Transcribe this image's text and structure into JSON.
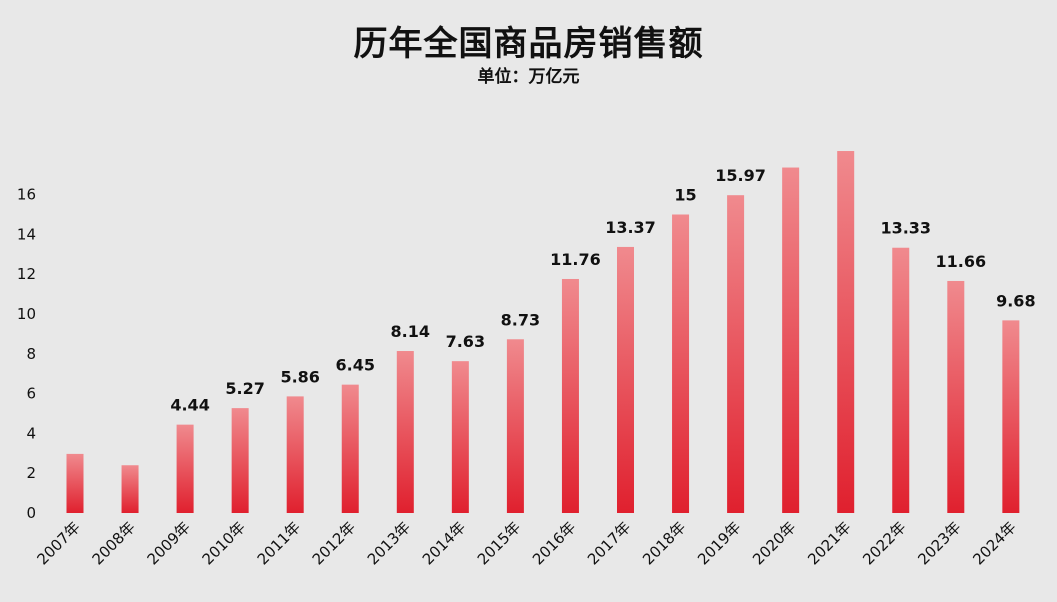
{
  "chart_data": {
    "type": "bar",
    "title": "历年全国商品房销售额",
    "subtitle": "单位：万亿元",
    "xlabel": "",
    "ylabel": "",
    "ylim": [
      0,
      18
    ],
    "yticks": [
      0,
      2,
      4,
      6,
      8,
      10,
      12,
      14,
      16
    ],
    "categories": [
      "2007年",
      "2008年",
      "2009年",
      "2010年",
      "2011年",
      "2012年",
      "2013年",
      "2014年",
      "2015年",
      "2016年",
      "2017年",
      "2018年",
      "2019年",
      "2020年",
      "2021年",
      "2022年",
      "2023年",
      "2024年"
    ],
    "values": [
      2.97,
      2.4,
      4.44,
      5.27,
      5.86,
      6.45,
      8.14,
      7.63,
      8.73,
      11.76,
      13.37,
      15,
      15.97,
      17.36,
      18.19,
      13.33,
      11.66,
      9.68
    ],
    "data_labels": [
      "",
      "",
      "4.44",
      "5.27",
      "5.86",
      "6.45",
      "8.14",
      "7.63",
      "8.73",
      "11.76",
      "13.37",
      "15",
      "15.97",
      "",
      "",
      "13.33",
      "11.66",
      "9.68"
    ],
    "grid": false,
    "legend": "none",
    "bar_color_top": "#f08a8e",
    "bar_color_bottom": "#e0202e"
  }
}
